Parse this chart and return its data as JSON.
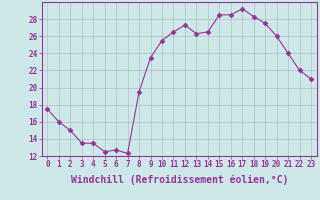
{
  "x": [
    0,
    1,
    2,
    3,
    4,
    5,
    6,
    7,
    8,
    9,
    10,
    11,
    12,
    13,
    14,
    15,
    16,
    17,
    18,
    19,
    20,
    21,
    22,
    23
  ],
  "y": [
    17.5,
    16.0,
    15.0,
    13.5,
    13.5,
    12.5,
    12.7,
    12.3,
    19.5,
    23.5,
    25.5,
    26.5,
    27.3,
    26.3,
    26.5,
    28.5,
    28.5,
    29.2,
    28.3,
    27.5,
    26.0,
    24.0,
    22.0,
    21.0
  ],
  "line_color": "#993399",
  "marker": "D",
  "marker_size": 2.5,
  "bg_color": "#cce8e8",
  "grid_color": "#aaaaaa",
  "xlabel": "Windchill (Refroidissement éolien,°C)",
  "ylim": [
    12,
    30
  ],
  "xlim": [
    -0.5,
    23.5
  ],
  "yticks": [
    12,
    14,
    16,
    18,
    20,
    22,
    24,
    26,
    28
  ],
  "xticks": [
    0,
    1,
    2,
    3,
    4,
    5,
    6,
    7,
    8,
    9,
    10,
    11,
    12,
    13,
    14,
    15,
    16,
    17,
    18,
    19,
    20,
    21,
    22,
    23
  ],
  "tick_color": "#993399",
  "tick_fontsize": 5.5,
  "xlabel_fontsize": 7,
  "axis_color": "#993399"
}
